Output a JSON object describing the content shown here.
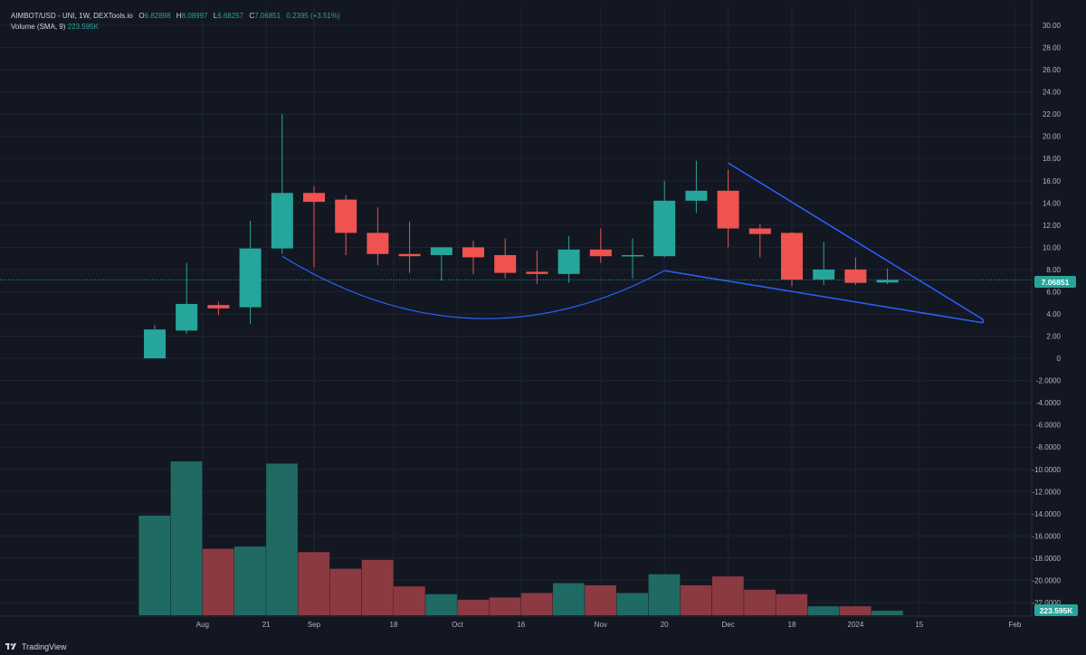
{
  "legend": {
    "symbol": "AIMBOT/USD - UNI, 1W, DEXTools.io",
    "o_label": "O",
    "o_value": "6.82898",
    "h_label": "H",
    "h_value": "8.08997",
    "l_label": "L",
    "l_value": "6.68257",
    "c_label": "C",
    "c_value": "7.06851",
    "change": "0.2395 (+3.51%)",
    "volume_label": "Volume (SMA, 9)",
    "volume_value": "223.595K"
  },
  "price_badge": "7.06851",
  "volume_badge": "223.595K",
  "brand": "TradingView",
  "colors": {
    "background": "#131722",
    "grid": "#1f2433",
    "up": "#26a69a",
    "down": "#ef5350",
    "vol_up": "#1f6b63",
    "vol_down": "#8c3a42",
    "pattern": "#2962ff",
    "text": "#b2b5be"
  },
  "chart_data": {
    "type": "candlestick",
    "y_ticks": [
      "30.00",
      "28.00",
      "26.00",
      "24.00",
      "22.00",
      "20.00",
      "18.00",
      "16.00",
      "14.00",
      "12.00",
      "10.00",
      "8.00",
      "6.00",
      "4.00",
      "2.00",
      "0",
      "-2.0000",
      "-4.0000",
      "-6.0000",
      "-8.0000",
      "-10.0000",
      "-12.0000",
      "-14.0000",
      "-16.0000",
      "-18.0000",
      "-20.0000",
      "-22.0000"
    ],
    "ylim": [
      -23.0,
      31.0
    ],
    "x_ticks": [
      {
        "label": "Aug",
        "week": 1.5
      },
      {
        "label": "21",
        "week": 3.5
      },
      {
        "label": "Sep",
        "week": 5
      },
      {
        "label": "18",
        "week": 7.5
      },
      {
        "label": "Oct",
        "week": 9.5
      },
      {
        "label": "16",
        "week": 11.5
      },
      {
        "label": "Nov",
        "week": 14
      },
      {
        "label": "20",
        "week": 16
      },
      {
        "label": "Dec",
        "week": 18
      },
      {
        "label": "18",
        "week": 20
      },
      {
        "label": "2024",
        "week": 22
      },
      {
        "label": "15",
        "week": 24
      },
      {
        "label": "Feb",
        "week": 27
      }
    ],
    "candles": [
      {
        "o": 0.0,
        "h": 3.0,
        "l": 0.0,
        "c": 2.6
      },
      {
        "o": 2.5,
        "h": 8.6,
        "l": 2.2,
        "c": 4.9
      },
      {
        "o": 4.8,
        "h": 5.1,
        "l": 3.9,
        "c": 4.5
      },
      {
        "o": 4.6,
        "h": 12.4,
        "l": 3.1,
        "c": 9.9
      },
      {
        "o": 9.9,
        "h": 22.0,
        "l": 9.4,
        "c": 14.9
      },
      {
        "o": 14.9,
        "h": 15.5,
        "l": 8.2,
        "c": 14.1
      },
      {
        "o": 14.3,
        "h": 14.7,
        "l": 9.3,
        "c": 11.3
      },
      {
        "o": 11.3,
        "h": 13.6,
        "l": 8.4,
        "c": 9.4
      },
      {
        "o": 9.4,
        "h": 12.3,
        "l": 7.7,
        "c": 9.2
      },
      {
        "o": 9.3,
        "h": 10.0,
        "l": 7.0,
        "c": 10.0
      },
      {
        "o": 10.0,
        "h": 10.6,
        "l": 7.6,
        "c": 9.1
      },
      {
        "o": 9.3,
        "h": 10.8,
        "l": 7.2,
        "c": 7.7
      },
      {
        "o": 7.8,
        "h": 9.7,
        "l": 6.7,
        "c": 7.6
      },
      {
        "o": 7.6,
        "h": 11.0,
        "l": 6.8,
        "c": 9.8
      },
      {
        "o": 9.8,
        "h": 11.7,
        "l": 8.6,
        "c": 9.2
      },
      {
        "o": 9.2,
        "h": 10.8,
        "l": 7.2,
        "c": 9.3
      },
      {
        "o": 9.2,
        "h": 16.0,
        "l": 9.1,
        "c": 14.2
      },
      {
        "o": 14.2,
        "h": 17.8,
        "l": 13.1,
        "c": 15.1
      },
      {
        "o": 15.1,
        "h": 17.0,
        "l": 10.0,
        "c": 11.7
      },
      {
        "o": 11.7,
        "h": 12.1,
        "l": 9.1,
        "c": 11.2
      },
      {
        "o": 11.3,
        "h": 11.4,
        "l": 6.5,
        "c": 7.1
      },
      {
        "o": 7.1,
        "h": 10.5,
        "l": 6.6,
        "c": 8.0
      },
      {
        "o": 8.0,
        "h": 9.1,
        "l": 6.6,
        "c": 6.8
      },
      {
        "o": 6.83,
        "h": 8.09,
        "l": 6.68,
        "c": 7.07
      }
    ],
    "volume": [
      {
        "value": 0.9,
        "up": true
      },
      {
        "value": 1.39,
        "up": true
      },
      {
        "value": 0.6,
        "up": false
      },
      {
        "value": 0.62,
        "up": true
      },
      {
        "value": 1.37,
        "up": true
      },
      {
        "value": 0.57,
        "up": false
      },
      {
        "value": 0.42,
        "up": false
      },
      {
        "value": 0.5,
        "up": false
      },
      {
        "value": 0.26,
        "up": false
      },
      {
        "value": 0.19,
        "up": true
      },
      {
        "value": 0.14,
        "up": false
      },
      {
        "value": 0.16,
        "up": false
      },
      {
        "value": 0.2,
        "up": false
      },
      {
        "value": 0.29,
        "up": true
      },
      {
        "value": 0.27,
        "up": false
      },
      {
        "value": 0.2,
        "up": true
      },
      {
        "value": 0.37,
        "up": true
      },
      {
        "value": 0.27,
        "up": false
      },
      {
        "value": 0.35,
        "up": false
      },
      {
        "value": 0.23,
        "up": false
      },
      {
        "value": 0.19,
        "up": false
      },
      {
        "value": 0.08,
        "up": true
      },
      {
        "value": 0.08,
        "up": false
      },
      {
        "value": 0.04,
        "up": true
      }
    ],
    "cup_arc": {
      "from": {
        "week": 4.0,
        "price": 9.2
      },
      "to": {
        "week": 16.0,
        "price": 7.9
      },
      "bottom_price": 3.6
    },
    "wedge_upper": {
      "from": {
        "week": 18.0,
        "price": 17.6
      },
      "to": {
        "week": 26.0,
        "price": 3.5
      }
    },
    "wedge_lower": {
      "from": {
        "week": 16.0,
        "price": 7.9
      },
      "to": {
        "week": 26.0,
        "price": 3.2
      }
    },
    "last_price": 7.06851,
    "grid": true
  }
}
